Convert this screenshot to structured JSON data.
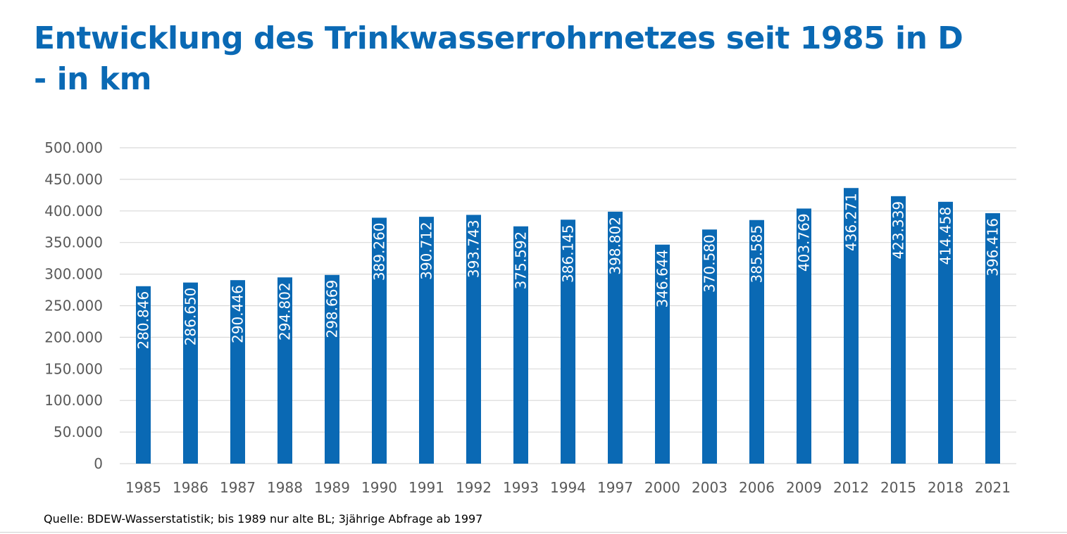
{
  "header": {
    "title_line1": "Entwicklung des Trinkwasserrohrnetzes seit 1985 in D",
    "title_line2": "- in km"
  },
  "footer": {
    "source": "Quelle: BDEW-Wasserstatistik; bis 1989 nur alte BL; 3jährige Abfrage ab 1997"
  },
  "colors": {
    "title": "#0a69b4",
    "bar": "#0a69b4",
    "grid": "#d9d9d9",
    "axis_text": "#595959",
    "bar_label": "#ffffff"
  },
  "chart_data": {
    "type": "bar",
    "categories": [
      "1985",
      "1986",
      "1987",
      "1988",
      "1989",
      "1990",
      "1991",
      "1992",
      "1993",
      "1994",
      "1997",
      "2000",
      "2003",
      "2006",
      "2009",
      "2012",
      "2015",
      "2018",
      "2021"
    ],
    "values": [
      280846,
      286650,
      290446,
      294802,
      298669,
      389260,
      390712,
      393743,
      375592,
      386145,
      398802,
      346644,
      370580,
      385585,
      403769,
      436271,
      423339,
      414458,
      396416
    ],
    "value_labels": [
      "280.846",
      "286.650",
      "290.446",
      "294.802",
      "298.669",
      "389.260",
      "390.712",
      "393.743",
      "375.592",
      "386.145",
      "398.802",
      "346.644",
      "370.580",
      "385.585",
      "403.769",
      "436.271",
      "423.339",
      "414.458",
      "396.416"
    ],
    "y_ticks": [
      "0",
      "50.000",
      "100.000",
      "150.000",
      "200.000",
      "250.000",
      "300.000",
      "350.000",
      "400.000",
      "450.000",
      "500.000"
    ],
    "ylim": [
      0,
      500000
    ],
    "grid": true,
    "legend": "none"
  }
}
